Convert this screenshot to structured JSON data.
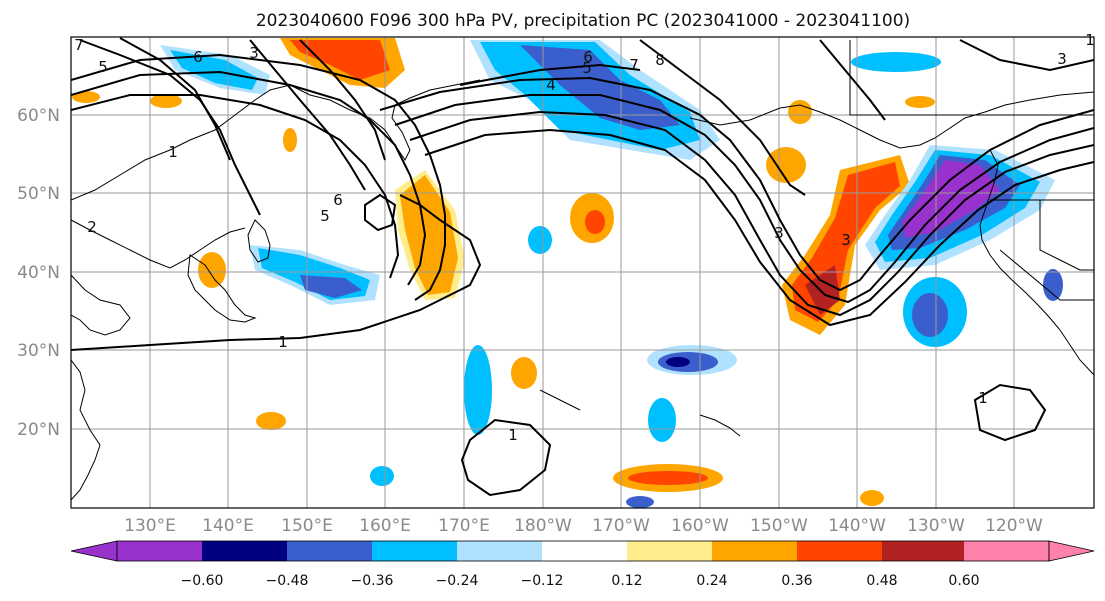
{
  "title": "2023040600 F096 300 hPa PV, precipitation PC (2023041000 - 2023041100)",
  "lat_labels": [
    "60°N",
    "50°N",
    "40°N",
    "30°N",
    "20°N"
  ],
  "lon_labels": [
    "130°E",
    "140°E",
    "150°E",
    "160°E",
    "170°E",
    "180°W",
    "170°W",
    "160°W",
    "150°W",
    "140°W",
    "130°W",
    "120°W"
  ],
  "contour_labels": [
    "7",
    "6",
    "5",
    "3",
    "1",
    "1",
    "6",
    "5",
    "4",
    "5",
    "6",
    "7",
    "8",
    "3",
    "3",
    "1",
    "2",
    "1",
    "1",
    "3"
  ],
  "colorbar": {
    "tick_labels": [
      "−0.60",
      "−0.48",
      "−0.36",
      "−0.24",
      "−0.12",
      "0.12",
      "0.24",
      "0.36",
      "0.48",
      "0.60"
    ],
    "colors": [
      "#9932cc",
      "#000080",
      "#3a5fcd",
      "#00bfff",
      "#b0e2ff",
      "#ffffff",
      "#ffec8b",
      "#ffa500",
      "#ff4500",
      "#b22222",
      "#ff82ab"
    ]
  },
  "map": {
    "projection": "cylindrical",
    "lon_range": [
      "120°E",
      "110°W"
    ],
    "lat_range": [
      "10°N",
      "70°N"
    ],
    "fields": [
      "300 hPa PV contours",
      "precipitation PC shading"
    ]
  }
}
